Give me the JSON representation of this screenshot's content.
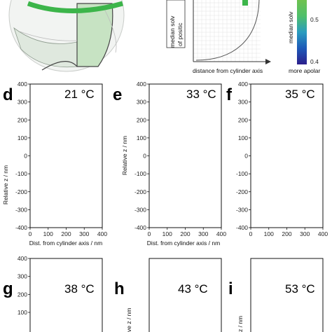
{
  "figure": {
    "panels": [
      {
        "letter": "d",
        "temp": "21 °C"
      },
      {
        "letter": "e",
        "temp": "33 °C"
      },
      {
        "letter": "f",
        "temp": "35 °C"
      },
      {
        "letter": "g",
        "temp": "38 °C"
      },
      {
        "letter": "h",
        "temp": "43 °C"
      },
      {
        "letter": "i",
        "temp": "53 °C"
      }
    ],
    "schematic": {
      "ylabel_line1": "median solv",
      "ylabel_line2": "of positic",
      "xlabel": "distance from cylinder axis"
    },
    "colorbar": {
      "label": "median solv",
      "ticks": [
        "0.5",
        "0.4"
      ],
      "bottom_label": "more apolar"
    }
  },
  "chart_data": [
    {
      "type": "heatmap",
      "panel": "d",
      "title": "21 °C",
      "xlabel": "Dist. from cylinder axis / nm",
      "ylabel": "Relative z / nm",
      "xlim": [
        0,
        400
      ],
      "ylim": [
        -400,
        400
      ],
      "xticks": [
        "0",
        "100",
        "200",
        "300",
        "400"
      ],
      "yticks": [
        "400",
        "300",
        "200",
        "100",
        "0",
        "-100",
        "-200",
        "-300",
        "-400"
      ]
    },
    {
      "type": "heatmap",
      "panel": "e",
      "title": "33 °C",
      "xlabel": "Dist. from cylinder axis / nm",
      "ylabel": "Relative z / nm",
      "xlim": [
        0,
        400
      ],
      "ylim": [
        -400,
        400
      ],
      "xticks": [
        "0",
        "100",
        "200",
        "300",
        "400"
      ],
      "yticks": [
        "400",
        "300",
        "200",
        "100",
        "0",
        "-100",
        "-200",
        "-300",
        "-400"
      ]
    },
    {
      "type": "heatmap",
      "panel": "f",
      "title": "35 °C",
      "xlabel": "Dist. from cylinder axis / nm",
      "ylabel": "Relative z / nm",
      "xlim": [
        0,
        400
      ],
      "ylim": [
        -400,
        400
      ],
      "xticks": [
        "0",
        "100",
        "200",
        "300",
        "400"
      ],
      "yticks": [
        "400",
        "300",
        "200",
        "100",
        "0",
        "-100",
        "-200",
        "-300",
        "-400"
      ]
    },
    {
      "type": "heatmap",
      "panel": "g",
      "title": "38 °C",
      "ylim": [
        0,
        400
      ],
      "yticks": [
        "400",
        "300",
        "200",
        "100"
      ]
    },
    {
      "type": "heatmap",
      "panel": "h",
      "title": "43 °C",
      "ylabel": "ve z / nm"
    },
    {
      "type": "heatmap",
      "panel": "i",
      "title": "53 °C",
      "ylabel": "z / nm"
    }
  ]
}
